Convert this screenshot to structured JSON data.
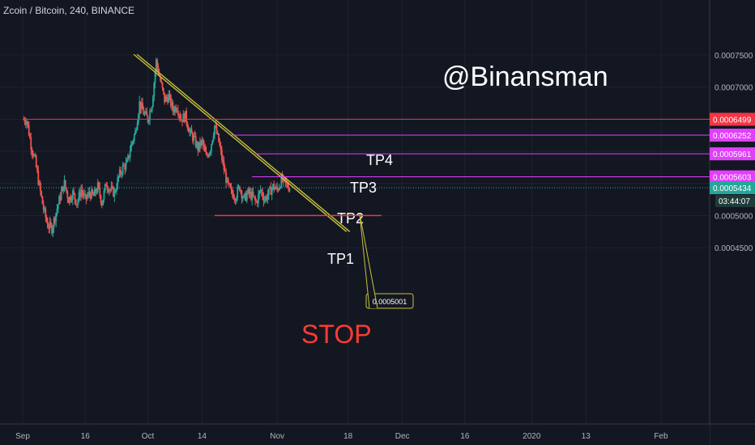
{
  "symbol": {
    "title": "Zcoin / Bitcoin, 240, BINANCE"
  },
  "watermark": "@Binansman",
  "colors": {
    "background": "#131722",
    "grid": "#1e2230",
    "axis_text": "#b2b5be",
    "candle_up": "#26a69a",
    "candle_down": "#ef5350",
    "trendline": "#c8c23a",
    "tp_line": "#e040fb",
    "tp4_line": "#f23645",
    "stop_line": "#f23645",
    "stop_text": "#ff3b30",
    "current_price": "#26a69a"
  },
  "chart_data": {
    "type": "candlestick",
    "title": "Zcoin / Bitcoin, 240, BINANCE",
    "x_axis": {
      "ticks": [
        "Sep",
        "16",
        "Oct",
        "14",
        "Nov",
        "18",
        "Dec",
        "16",
        "2020",
        "13",
        "Feb"
      ],
      "tick_days": [
        0,
        15,
        30,
        43,
        61,
        78,
        91,
        106,
        122,
        135,
        153
      ]
    },
    "y_axis": {
      "ylim": [
        0.00042,
        0.00078
      ],
      "ticks": [
        "0.0007500",
        "0.0007000",
        "0.0006500",
        "0.0006000",
        "0.0005500",
        "0.0005000",
        "0.0004500"
      ],
      "tick_values": [
        0.00075,
        0.0007,
        0.00065,
        0.0006,
        0.00055,
        0.0005,
        0.00045
      ],
      "grid": true,
      "position": "right"
    },
    "price_path": [
      [
        0,
        0.00065
      ],
      [
        1,
        0.000648
      ],
      [
        2,
        0.00061
      ],
      [
        3,
        0.000585
      ],
      [
        4,
        0.000545
      ],
      [
        5,
        0.00051
      ],
      [
        6,
        0.000485
      ],
      [
        7,
        0.00048
      ],
      [
        8,
        0.000505
      ],
      [
        9,
        0.00053
      ],
      [
        10,
        0.00055
      ],
      [
        11,
        0.000525
      ],
      [
        12,
        0.000535
      ],
      [
        13,
        0.00052
      ],
      [
        14,
        0.00054
      ],
      [
        15,
        0.000525
      ],
      [
        16,
        0.000535
      ],
      [
        17,
        0.00053
      ],
      [
        18,
        0.000545
      ],
      [
        19,
        0.00052
      ],
      [
        20,
        0.00055
      ],
      [
        21,
        0.00054
      ],
      [
        22,
        0.000535
      ],
      [
        23,
        0.00056
      ],
      [
        24,
        0.000575
      ],
      [
        25,
        0.00058
      ],
      [
        26,
        0.00061
      ],
      [
        27,
        0.00063
      ],
      [
        28,
        0.000675
      ],
      [
        29,
        0.00066
      ],
      [
        30,
        0.00065
      ],
      [
        31,
        0.000675
      ],
      [
        32,
        0.00074
      ],
      [
        33,
        0.00071
      ],
      [
        34,
        0.00068
      ],
      [
        35,
        0.000685
      ],
      [
        36,
        0.000665
      ],
      [
        37,
        0.00067
      ],
      [
        38,
        0.00065
      ],
      [
        39,
        0.000655
      ],
      [
        40,
        0.00063
      ],
      [
        41,
        0.00062
      ],
      [
        42,
        0.000605
      ],
      [
        43,
        0.000615
      ],
      [
        44,
        0.00059
      ],
      [
        45,
        0.000605
      ],
      [
        46,
        0.00064
      ],
      [
        47,
        0.000615
      ],
      [
        48,
        0.00058
      ],
      [
        49,
        0.00055
      ],
      [
        50,
        0.000535
      ],
      [
        51,
        0.00053
      ],
      [
        52,
        0.000545
      ],
      [
        53,
        0.000525
      ],
      [
        54,
        0.000535
      ],
      [
        55,
        0.00053
      ],
      [
        56,
        0.00052
      ],
      [
        57,
        0.00054
      ],
      [
        58,
        0.000525
      ],
      [
        59,
        0.000535
      ],
      [
        60,
        0.000545
      ],
      [
        61,
        0.00054
      ],
      [
        62,
        0.000555
      ],
      [
        63,
        0.00055
      ],
      [
        64,
        0.0005434
      ]
    ],
    "trendline": {
      "start": [
        27,
        0.000751
      ],
      "end": [
        78,
        0.000475
      ]
    },
    "levels": [
      {
        "name": "TP4",
        "label": "TP4",
        "price": 0.0006499,
        "price_label": "0.0006499",
        "start_day": 0,
        "color": "tp4"
      },
      {
        "name": "TP3",
        "label": "TP3",
        "price": 0.0006252,
        "price_label": "0.0006252",
        "start_day": 50,
        "color": "tp"
      },
      {
        "name": "TP2",
        "label": "TP2",
        "price": 0.0005961,
        "price_label": "0.0005961",
        "start_day": 56,
        "color": "tp"
      },
      {
        "name": "TP1",
        "label": "TP1",
        "price": 0.0005603,
        "price_label": "0.0005603",
        "start_day": 55,
        "color": "tp"
      }
    ],
    "current_price": {
      "value": 0.0005434,
      "label": "0.0005434",
      "countdown": "03:44:07"
    },
    "stop": {
      "label": "STOP",
      "price": 0.0005001,
      "callout": "0.0005001",
      "start_day": 46,
      "end_day": 86
    }
  }
}
